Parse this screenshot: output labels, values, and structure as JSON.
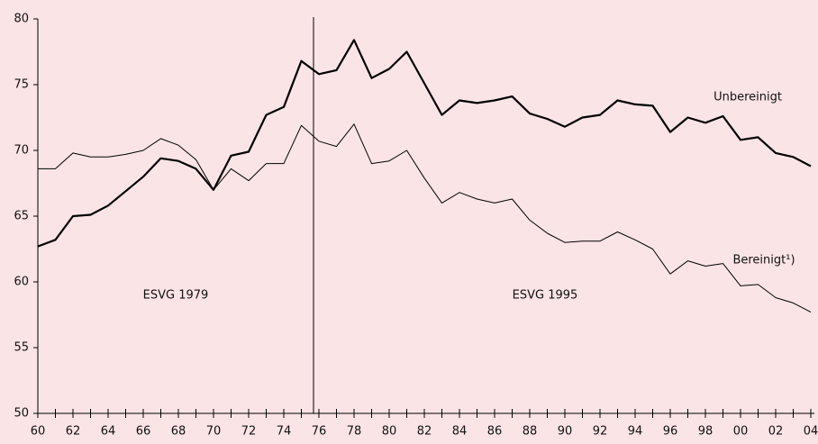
{
  "chart_data": {
    "type": "line",
    "categories": [
      "60",
      null,
      "62",
      null,
      "64",
      null,
      "66",
      null,
      "68",
      null,
      "70",
      null,
      "72",
      null,
      "74",
      null,
      "76",
      null,
      "78",
      null,
      "80",
      null,
      "82",
      null,
      "84",
      null,
      "86",
      null,
      "88",
      null,
      "90",
      null,
      "92",
      null,
      "94",
      null,
      "96",
      null,
      "98",
      null,
      "00",
      null,
      "02",
      null,
      "04"
    ],
    "series": [
      {
        "name": "Unbereinigt",
        "color": "#000000",
        "values": [
          62.7,
          63.2,
          65.0,
          65.1,
          65.8,
          66.9,
          68.0,
          69.4,
          69.2,
          68.6,
          67.0,
          69.6,
          69.9,
          72.7,
          73.3,
          76.8,
          75.8,
          76.1,
          78.4,
          75.5,
          76.2,
          77.5,
          75.1,
          72.7,
          73.8,
          73.6,
          73.8,
          74.1,
          72.8,
          72.4,
          71.8,
          72.5,
          72.7,
          73.8,
          73.5,
          73.4,
          71.4,
          72.5,
          72.1,
          72.6,
          70.8,
          71.0,
          69.8,
          69.5,
          68.8
        ]
      },
      {
        "name": "Bereinigt¹)",
        "color": "#000000",
        "values": [
          68.6,
          68.6,
          69.8,
          69.5,
          69.5,
          69.7,
          70.0,
          70.9,
          70.4,
          69.3,
          67.0,
          68.6,
          67.7,
          69.0,
          69.0,
          71.9,
          70.7,
          70.3,
          72.0,
          69.0,
          69.2,
          70.0,
          67.9,
          66.0,
          66.8,
          66.3,
          66.0,
          66.3,
          64.7,
          63.7,
          63.0,
          63.1,
          63.1,
          63.8,
          63.2,
          62.5,
          60.6,
          61.6,
          61.2,
          61.4,
          59.7,
          59.8,
          58.8,
          58.4,
          57.7
        ]
      }
    ],
    "annotations": [
      "ESVG 1979",
      "ESVG 1995"
    ],
    "ylim": [
      50,
      80
    ],
    "yticks": [
      50,
      55,
      60,
      65,
      70,
      75,
      80
    ],
    "grid": false
  }
}
